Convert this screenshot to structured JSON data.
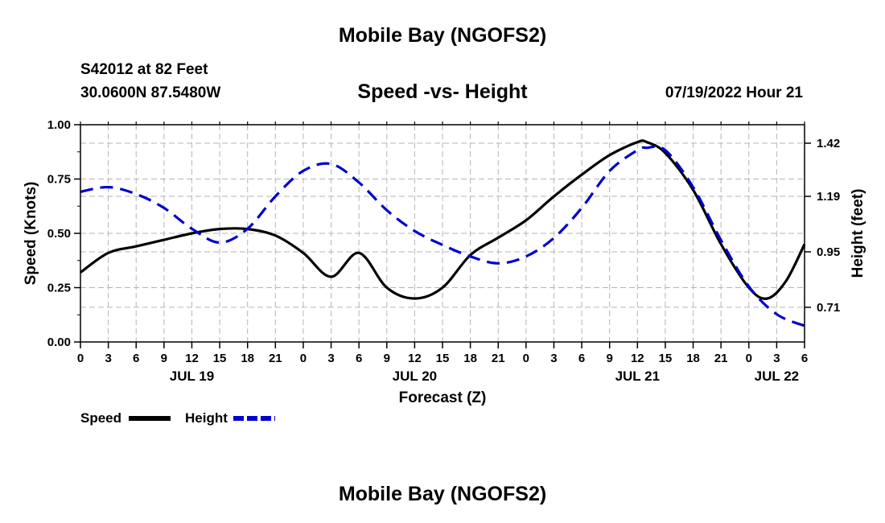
{
  "header": {
    "title": "Mobile Bay (NGOFS2)",
    "station": "S42012 at 82 Feet",
    "coords": "30.0600N  87.5480W",
    "subtitle": "Speed -vs- Height",
    "datetime": "07/19/2022 Hour 21"
  },
  "footer": {
    "title": "Mobile Bay (NGOFS2)"
  },
  "chart_data": {
    "type": "line",
    "xlabel": "Forecast (Z)",
    "ylabel": "Speed (Knots)",
    "ylabel_right": "Height (feet)",
    "x_range": [
      0,
      78
    ],
    "ylim": [
      0,
      1
    ],
    "ylim_right": [
      0.56,
      1.5
    ],
    "grid": true,
    "y_ticks": [
      0.0,
      0.25,
      0.5,
      0.75,
      1.0
    ],
    "y_tick_labels": [
      "0.00",
      "0.25",
      "0.50",
      "0.75",
      "1.00"
    ],
    "y_ticks_right": [
      0.71,
      0.95,
      1.19,
      1.42
    ],
    "y_tick_labels_right": [
      "0.71",
      "0.95",
      "1.19",
      "1.42"
    ],
    "x_ticks": [
      0,
      3,
      6,
      9,
      12,
      15,
      18,
      21,
      24,
      27,
      30,
      33,
      36,
      39,
      42,
      45,
      48,
      51,
      54,
      57,
      60,
      63,
      66,
      69,
      72,
      75,
      78
    ],
    "x_tick_labels": [
      "0",
      "3",
      "6",
      "9",
      "12",
      "15",
      "18",
      "21",
      "0",
      "3",
      "6",
      "9",
      "12",
      "15",
      "18",
      "21",
      "0",
      "3",
      "6",
      "9",
      "12",
      "15",
      "18",
      "21",
      "0",
      "3",
      "6"
    ],
    "date_labels": [
      {
        "hour": 12,
        "label": "JUL 19"
      },
      {
        "hour": 36,
        "label": "JUL 20"
      },
      {
        "hour": 60,
        "label": "JUL 21"
      },
      {
        "hour": 75,
        "label": "JUL 22"
      }
    ],
    "legend": [
      {
        "label": "Speed",
        "color": "#000000",
        "dash": "solid"
      },
      {
        "label": "Height",
        "color": "#0000cc",
        "dash": "dashed"
      }
    ],
    "series": [
      {
        "name": "Speed",
        "axis": "left",
        "color": "#000000",
        "x": [
          0,
          3,
          6,
          9,
          12,
          15,
          18,
          21,
          24,
          27,
          30,
          33,
          36,
          39,
          42,
          45,
          48,
          51,
          54,
          57,
          60,
          61,
          63,
          66,
          69,
          72,
          74,
          76,
          78
        ],
        "values": [
          0.32,
          0.41,
          0.44,
          0.47,
          0.5,
          0.52,
          0.52,
          0.49,
          0.41,
          0.3,
          0.41,
          0.25,
          0.2,
          0.25,
          0.4,
          0.48,
          0.56,
          0.67,
          0.77,
          0.86,
          0.92,
          0.92,
          0.87,
          0.7,
          0.45,
          0.25,
          0.2,
          0.28,
          0.45
        ]
      },
      {
        "name": "Height",
        "axis": "right",
        "color": "#0000cc",
        "x": [
          0,
          3,
          6,
          9,
          12,
          15,
          18,
          21,
          24,
          27,
          30,
          33,
          36,
          39,
          42,
          45,
          48,
          51,
          54,
          57,
          60,
          61,
          63,
          66,
          69,
          72,
          75,
          78
        ],
        "values": [
          1.21,
          1.23,
          1.2,
          1.14,
          1.05,
          0.99,
          1.05,
          1.19,
          1.3,
          1.33,
          1.25,
          1.13,
          1.04,
          0.98,
          0.93,
          0.9,
          0.93,
          1.01,
          1.14,
          1.3,
          1.39,
          1.4,
          1.39,
          1.23,
          1.0,
          0.8,
          0.68,
          0.63
        ]
      }
    ]
  }
}
